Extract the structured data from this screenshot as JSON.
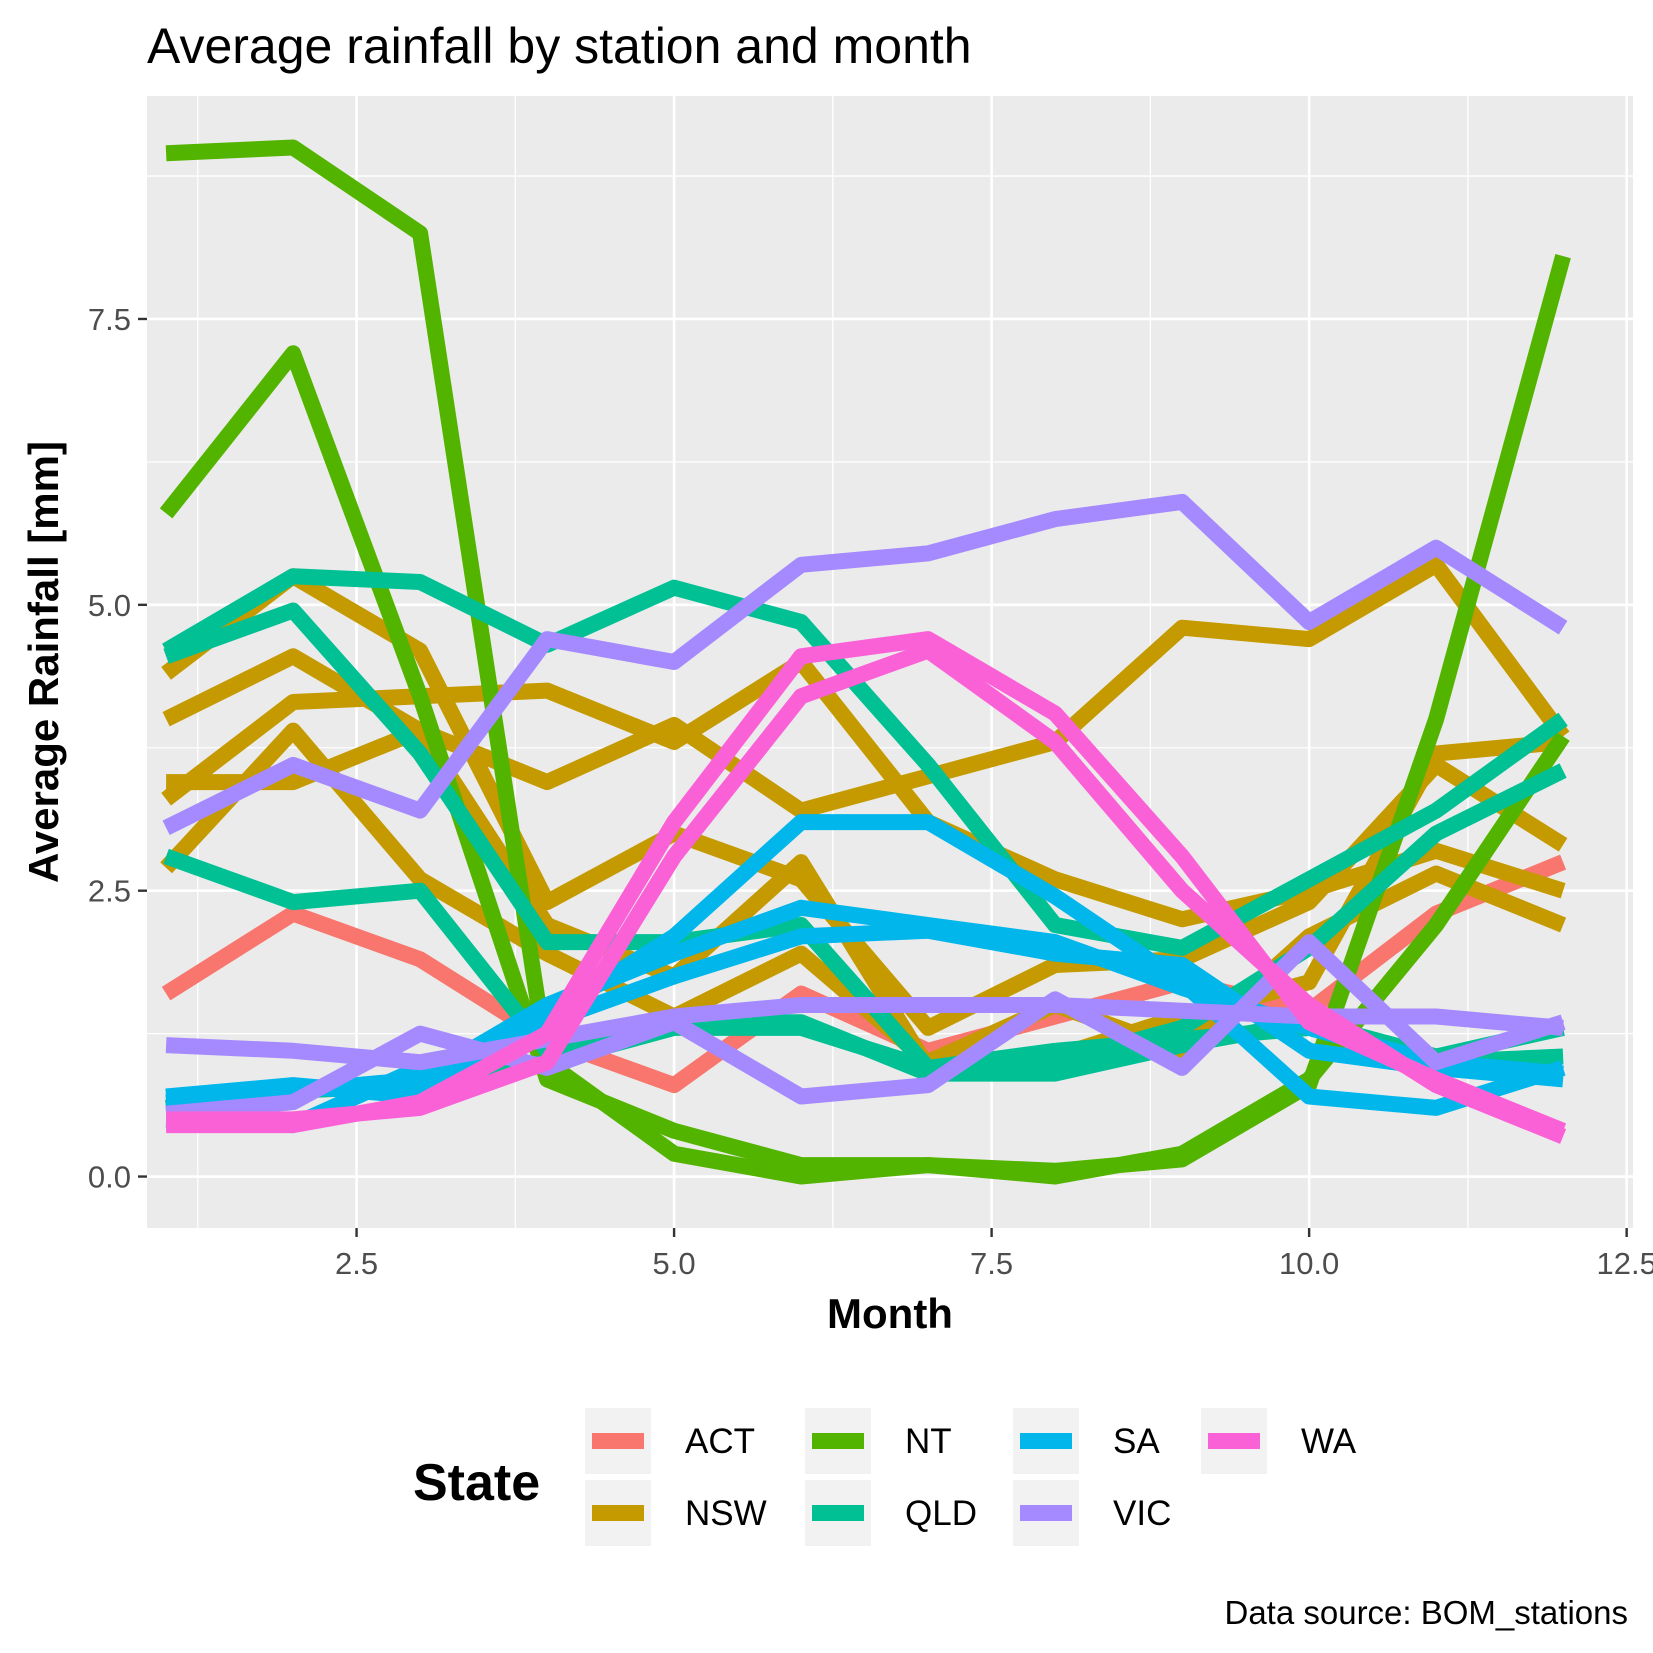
{
  "chart_data": {
    "type": "line",
    "title": "Average rainfall by station and month",
    "xlabel": "Month",
    "ylabel": "Average Rainfall [mm]",
    "caption": "Data source: BOM_stations",
    "xlim": [
      0.85,
      12.55
    ],
    "ylim": [
      -0.45,
      9.45
    ],
    "x_ticks": [
      2.5,
      5.0,
      7.5,
      10.0,
      12.5
    ],
    "x_tick_labels": [
      "2.5",
      "5.0",
      "7.5",
      "10.0",
      "12.5"
    ],
    "y_ticks": [
      0.0,
      2.5,
      5.0,
      7.5
    ],
    "y_tick_labels": [
      "0.0",
      "2.5",
      "5.0",
      "7.5"
    ],
    "grid": true,
    "legend": {
      "title": "State",
      "position": "bottom",
      "entries": [
        {
          "label": "ACT",
          "color": "#F8766D"
        },
        {
          "label": "NSW",
          "color": "#C49A00"
        },
        {
          "label": "NT",
          "color": "#53B400"
        },
        {
          "label": "QLD",
          "color": "#00C094"
        },
        {
          "label": "SA",
          "color": "#00B6EB"
        },
        {
          "label": "VIC",
          "color": "#A58AFF"
        },
        {
          "label": "WA",
          "color": "#FB61D7"
        }
      ]
    },
    "x": [
      1,
      2,
      3,
      4,
      5,
      6,
      7,
      8,
      9,
      10,
      11,
      12
    ],
    "series": [
      {
        "state": "ACT",
        "color": "#F8766D",
        "values": [
          1.6,
          2.3,
          1.9,
          1.2,
          0.8,
          1.6,
          1.1,
          1.4,
          1.7,
          1.45,
          2.3,
          2.75
        ]
      },
      {
        "state": "NSW",
        "color": "#C49A00",
        "values": [
          4.4,
          5.25,
          4.6,
          2.4,
          3.0,
          2.6,
          1.3,
          1.85,
          1.9,
          2.4,
          3.6,
          2.9
        ]
      },
      {
        "state": "NSW",
        "color": "#C49A00",
        "values": [
          4.0,
          4.55,
          3.9,
          3.45,
          3.95,
          3.2,
          3.5,
          3.8,
          4.8,
          4.7,
          5.35,
          3.85
        ]
      },
      {
        "state": "NSW",
        "color": "#C49A00",
        "values": [
          3.3,
          4.15,
          4.2,
          4.25,
          3.8,
          4.5,
          3.1,
          2.6,
          2.25,
          2.5,
          2.85,
          2.5
        ]
      },
      {
        "state": "NSW",
        "color": "#C49A00",
        "values": [
          3.45,
          3.45,
          3.9,
          2.2,
          1.75,
          2.75,
          0.95,
          1.05,
          1.4,
          1.7,
          3.7,
          3.8
        ]
      },
      {
        "state": "NSW",
        "color": "#C49A00",
        "values": [
          2.7,
          3.9,
          2.6,
          1.95,
          1.4,
          1.95,
          1.0,
          1.5,
          1.1,
          2.1,
          2.65,
          2.2
        ]
      },
      {
        "state": "NT",
        "color": "#53B400",
        "values": [
          8.95,
          9.0,
          8.25,
          1.0,
          0.2,
          0.0,
          0.1,
          0.0,
          0.2,
          0.85,
          2.2,
          3.85
        ]
      },
      {
        "state": "NT",
        "color": "#53B400",
        "values": [
          5.8,
          7.2,
          4.2,
          0.85,
          0.4,
          0.1,
          0.1,
          0.05,
          0.15,
          0.8,
          4.0,
          8.05
        ]
      },
      {
        "state": "QLD",
        "color": "#00C094",
        "values": [
          4.6,
          5.25,
          5.2,
          4.65,
          5.15,
          4.85,
          3.6,
          2.2,
          2.0,
          2.6,
          3.2,
          4.0
        ]
      },
      {
        "state": "QLD",
        "color": "#00C094",
        "values": [
          4.55,
          4.95,
          3.7,
          2.05,
          2.05,
          2.2,
          0.95,
          1.0,
          1.3,
          2.0,
          3.0,
          3.55
        ]
      },
      {
        "state": "QLD",
        "color": "#00C094",
        "values": [
          2.8,
          2.4,
          2.5,
          1.1,
          1.35,
          1.35,
          0.9,
          0.9,
          1.15,
          1.35,
          1.05,
          1.3
        ]
      },
      {
        "state": "QLD",
        "color": "#00C094",
        "values": [
          0.6,
          0.75,
          0.8,
          1.0,
          1.3,
          1.3,
          0.95,
          1.1,
          1.2,
          1.3,
          1.0,
          1.05
        ]
      },
      {
        "state": "SA",
        "color": "#00B6EB",
        "values": [
          0.7,
          0.8,
          0.7,
          1.4,
          2.1,
          3.1,
          3.1,
          2.45,
          1.7,
          0.7,
          0.6,
          0.95
        ]
      },
      {
        "state": "SA",
        "color": "#00B6EB",
        "values": [
          0.65,
          0.75,
          0.85,
          1.5,
          1.95,
          2.35,
          2.2,
          2.05,
          1.65,
          1.3,
          1.0,
          0.9
        ]
      },
      {
        "state": "SA",
        "color": "#00B6EB",
        "values": [
          0.5,
          0.45,
          0.95,
          1.35,
          1.75,
          2.1,
          2.15,
          1.95,
          1.85,
          1.1,
          0.95,
          0.85
        ]
      },
      {
        "state": "VIC",
        "color": "#A58AFF",
        "values": [
          3.05,
          3.6,
          3.2,
          4.7,
          4.5,
          5.35,
          5.45,
          5.75,
          5.9,
          4.85,
          5.5,
          4.8
        ]
      },
      {
        "state": "VIC",
        "color": "#A58AFF",
        "values": [
          1.15,
          1.1,
          1.0,
          1.2,
          1.4,
          1.5,
          1.5,
          1.5,
          1.45,
          1.4,
          1.4,
          1.3
        ]
      },
      {
        "state": "VIC",
        "color": "#A58AFF",
        "values": [
          0.55,
          0.65,
          1.25,
          0.95,
          1.35,
          0.7,
          0.8,
          1.55,
          0.95,
          2.05,
          1.0,
          1.35
        ]
      },
      {
        "state": "WA",
        "color": "#FB61D7",
        "values": [
          0.45,
          0.45,
          0.65,
          1.25,
          3.1,
          4.55,
          4.7,
          4.05,
          2.8,
          1.35,
          0.85,
          0.4
        ]
      },
      {
        "state": "WA",
        "color": "#FB61D7",
        "values": [
          0.5,
          0.5,
          0.6,
          1.0,
          2.8,
          4.2,
          4.6,
          3.8,
          2.5,
          1.5,
          0.8,
          0.35
        ]
      }
    ]
  }
}
